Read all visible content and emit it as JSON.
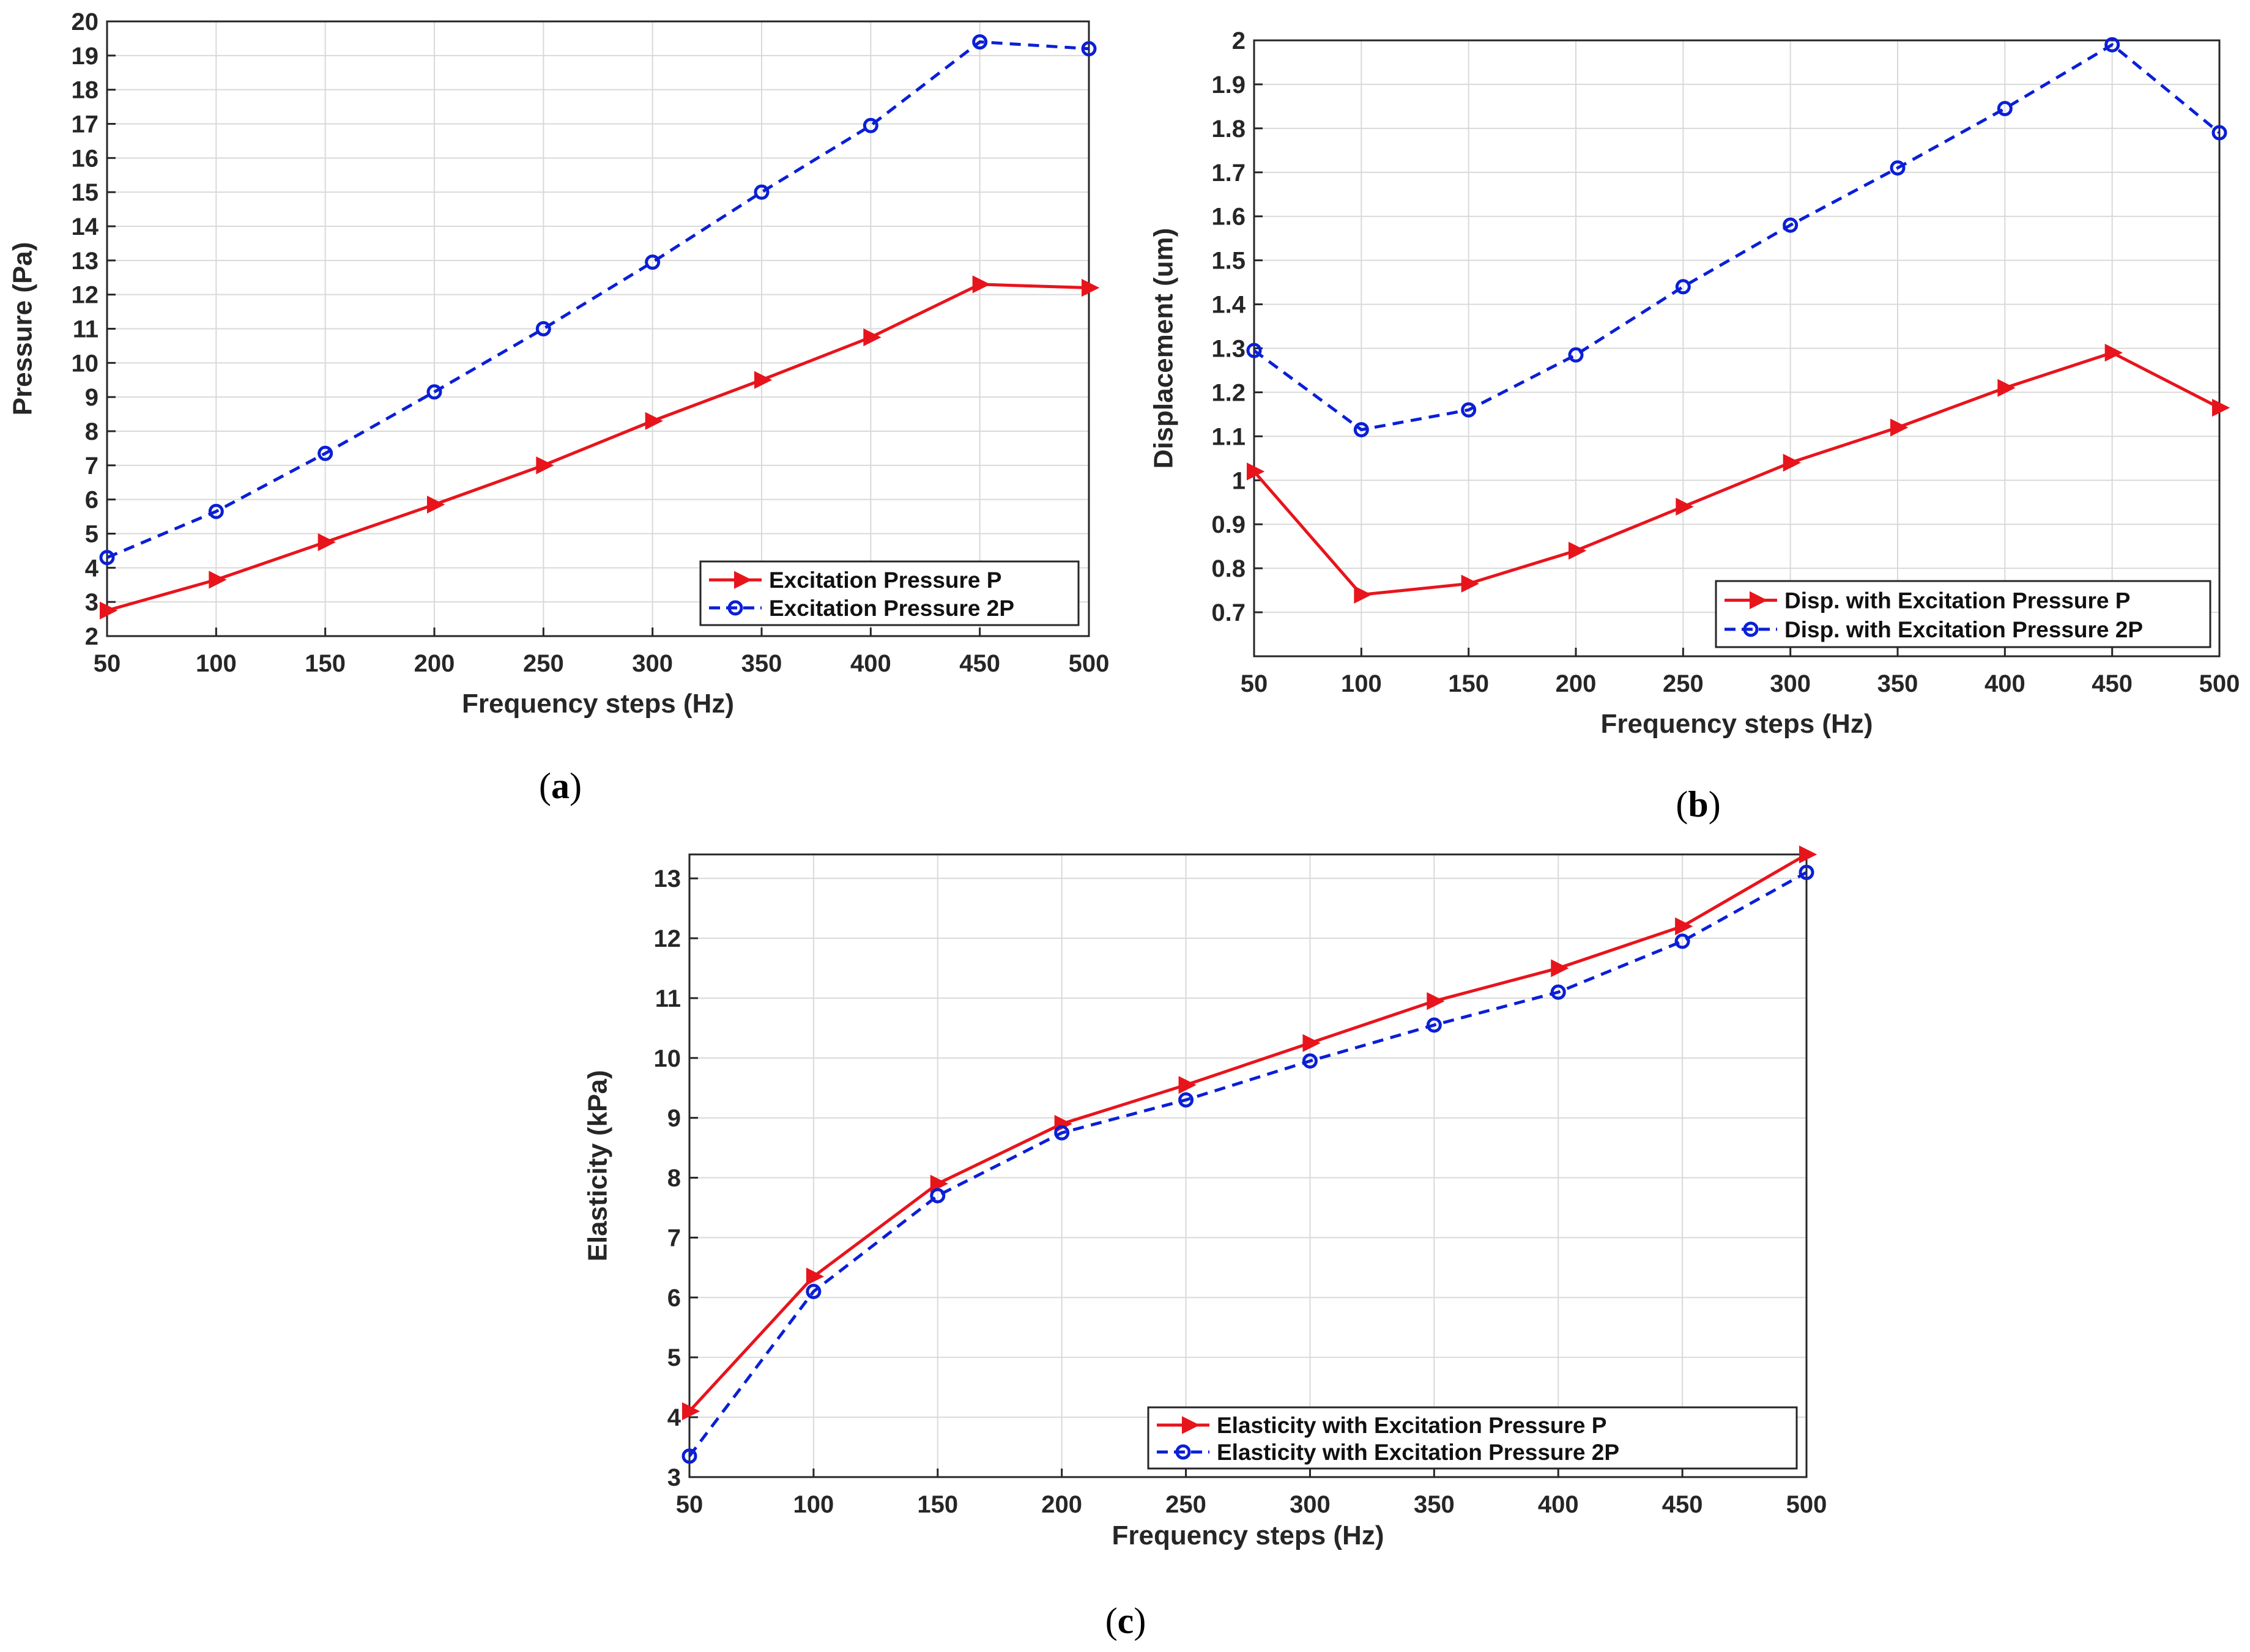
{
  "chart_data": [
    {
      "id": "a",
      "type": "line",
      "panel_label": "a",
      "xlabel": "Frequency steps (Hz)",
      "ylabel": "Pressure (Pa)",
      "xlim": [
        50,
        500
      ],
      "ylim": [
        2,
        20
      ],
      "xticks": [
        50,
        100,
        150,
        200,
        250,
        300,
        350,
        400,
        450,
        500
      ],
      "yticks": [
        2,
        3,
        4,
        5,
        6,
        7,
        8,
        9,
        10,
        11,
        12,
        13,
        14,
        15,
        16,
        17,
        18,
        19,
        20
      ],
      "ytick_labels": [
        "2",
        "3",
        "4",
        "5",
        "6",
        "7",
        "8",
        "9",
        "10",
        "11",
        "12",
        "13",
        "14",
        "15",
        "16",
        "17",
        "18",
        "19",
        "20"
      ],
      "grid": true,
      "legend_position": "bottom-right",
      "x": [
        50,
        100,
        150,
        200,
        250,
        300,
        350,
        400,
        450,
        500
      ],
      "series": [
        {
          "name": "Excitation Pressure P",
          "color": "#e8141c",
          "style": "solid",
          "marker": "triangle-right",
          "values": [
            2.75,
            3.65,
            4.75,
            5.85,
            7.0,
            8.3,
            9.5,
            10.75,
            12.3,
            12.2
          ]
        },
        {
          "name": "Excitation Pressure 2P",
          "color": "#0a1fd6",
          "style": "dashed",
          "marker": "circle",
          "values": [
            4.3,
            5.65,
            7.35,
            9.15,
            11.0,
            12.95,
            15.0,
            16.95,
            19.4,
            19.2
          ]
        }
      ]
    },
    {
      "id": "b",
      "type": "line",
      "panel_label": "b",
      "xlabel": "Frequency steps (Hz)",
      "ylabel": "Displacement (um)",
      "xlim": [
        50,
        500
      ],
      "ylim": [
        0.6,
        2.0
      ],
      "xticks": [
        50,
        100,
        150,
        200,
        250,
        300,
        350,
        400,
        450,
        500
      ],
      "yticks": [
        0.7,
        0.8,
        0.9,
        1.0,
        1.1,
        1.2,
        1.3,
        1.4,
        1.5,
        1.6,
        1.7,
        1.8,
        1.9,
        2.0
      ],
      "ytick_labels": [
        "0.7",
        "0.8",
        "0.9",
        "1",
        "1.1",
        "1.2",
        "1.3",
        "1.4",
        "1.5",
        "1.6",
        "1.7",
        "1.8",
        "1.9",
        "2"
      ],
      "grid": true,
      "legend_position": "bottom-right",
      "x": [
        50,
        100,
        150,
        200,
        250,
        300,
        350,
        400,
        450,
        500
      ],
      "series": [
        {
          "name": "Disp. with Excitation Pressure P",
          "color": "#e8141c",
          "style": "solid",
          "marker": "triangle-right",
          "values": [
            1.02,
            0.74,
            0.765,
            0.84,
            0.94,
            1.04,
            1.12,
            1.21,
            1.29,
            1.165
          ]
        },
        {
          "name": "Disp. with Excitation Pressure 2P",
          "color": "#0a1fd6",
          "style": "dashed",
          "marker": "circle",
          "values": [
            1.295,
            1.115,
            1.16,
            1.285,
            1.44,
            1.58,
            1.71,
            1.845,
            1.99,
            1.79
          ]
        }
      ]
    },
    {
      "id": "c",
      "type": "line",
      "panel_label": "c",
      "xlabel": "Frequency steps (Hz)",
      "ylabel": "Elasticity (kPa)",
      "xlim": [
        50,
        500
      ],
      "ylim": [
        3,
        13.4
      ],
      "xticks": [
        50,
        100,
        150,
        200,
        250,
        300,
        350,
        400,
        450,
        500
      ],
      "yticks": [
        3,
        4,
        5,
        6,
        7,
        8,
        9,
        10,
        11,
        12,
        13
      ],
      "ytick_labels": [
        "3",
        "4",
        "5",
        "6",
        "7",
        "8",
        "9",
        "10",
        "11",
        "12",
        "13"
      ],
      "grid": true,
      "legend_position": "bottom-right",
      "x": [
        50,
        100,
        150,
        200,
        250,
        300,
        350,
        400,
        450,
        500
      ],
      "series": [
        {
          "name": "Elasticity with Excitation Pressure P",
          "color": "#e8141c",
          "style": "solid",
          "marker": "triangle-right",
          "values": [
            4.1,
            6.35,
            7.9,
            8.9,
            9.55,
            10.25,
            10.95,
            11.5,
            12.2,
            13.4
          ]
        },
        {
          "name": "Elasticity with Excitation Pressure 2P",
          "color": "#0a1fd6",
          "style": "dashed",
          "marker": "circle",
          "values": [
            3.35,
            6.1,
            7.7,
            8.75,
            9.3,
            9.95,
            10.55,
            11.1,
            11.95,
            13.1
          ]
        }
      ]
    }
  ]
}
